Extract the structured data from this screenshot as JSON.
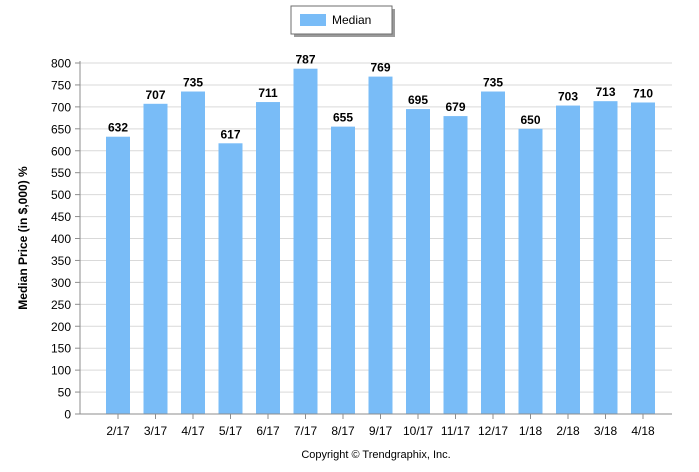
{
  "chart_data": {
    "type": "bar",
    "categories": [
      "2/17",
      "3/17",
      "4/17",
      "5/17",
      "6/17",
      "7/17",
      "8/17",
      "9/17",
      "10/17",
      "11/17",
      "12/17",
      "1/18",
      "2/18",
      "3/18",
      "4/18"
    ],
    "series": [
      {
        "name": "Median",
        "values": [
          632,
          707,
          735,
          617,
          711,
          787,
          655,
          769,
          695,
          679,
          735,
          650,
          703,
          713,
          710
        ],
        "color": "#79BCF7"
      }
    ],
    "title": "",
    "xlabel": "",
    "ylabel": "Median Price (in $,000) %",
    "ylim": [
      0,
      800
    ],
    "yticks": [
      0,
      50,
      100,
      150,
      200,
      250,
      300,
      350,
      400,
      450,
      500,
      550,
      600,
      650,
      700,
      750,
      800
    ],
    "grid": true,
    "legend": "top-center",
    "data_labels": true
  },
  "footer": {
    "copyright": "Copyright © Trendgraphix, Inc."
  },
  "colors": {
    "bar": "#79BCF7",
    "grid": "#D9D9D9",
    "axis": "#8C8C8C",
    "text": "#000000"
  }
}
